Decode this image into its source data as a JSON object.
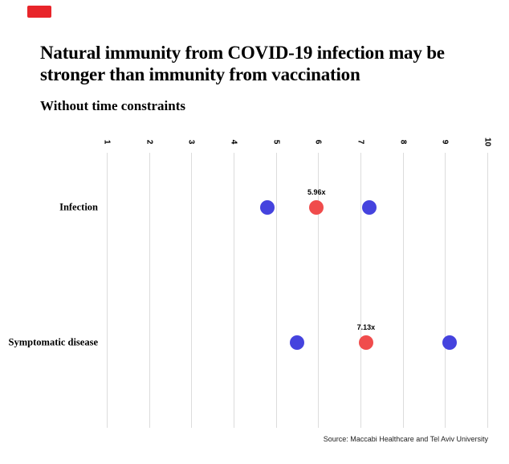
{
  "header": {
    "title_line1": "Natural immunity from COVID-19 infection may be",
    "title_line2": "stronger than immunity from vaccination",
    "subtitle": "Without time constraints"
  },
  "footer": {
    "source": "Source: Maccabi Healthcare and Tel Aviv University"
  },
  "chart_data": {
    "type": "scatter",
    "title": "Natural immunity from COVID-19 infection may be stronger than immunity from vaccination",
    "subtitle": "Without time constraints",
    "source": "Source: Maccabi Healthcare and Tel Aviv University",
    "xlim": [
      1,
      10
    ],
    "x_ticks": [
      1,
      2,
      3,
      4,
      5,
      6,
      7,
      8,
      9,
      10
    ],
    "grid": "vertical-only",
    "legend_position": "none",
    "categories": [
      "Infection",
      "Symptomatic disease"
    ],
    "colors": {
      "estimate": "#F04C4C",
      "interval": "#4543DE"
    },
    "rows": [
      {
        "label": "Infection",
        "points": [
          {
            "value": 4.8,
            "color": "blue",
            "role": "interval-bound"
          },
          {
            "value": 5.96,
            "color": "red",
            "role": "estimate",
            "label": "5.96x"
          },
          {
            "value": 7.2,
            "color": "blue",
            "role": "interval-bound"
          }
        ]
      },
      {
        "label": "Symptomatic disease",
        "points": [
          {
            "value": 5.5,
            "color": "blue",
            "role": "interval-bound"
          },
          {
            "value": 7.13,
            "color": "red",
            "role": "estimate",
            "label": "7.13x"
          },
          {
            "value": 9.1,
            "color": "blue",
            "role": "interval-bound"
          }
        ]
      }
    ]
  }
}
